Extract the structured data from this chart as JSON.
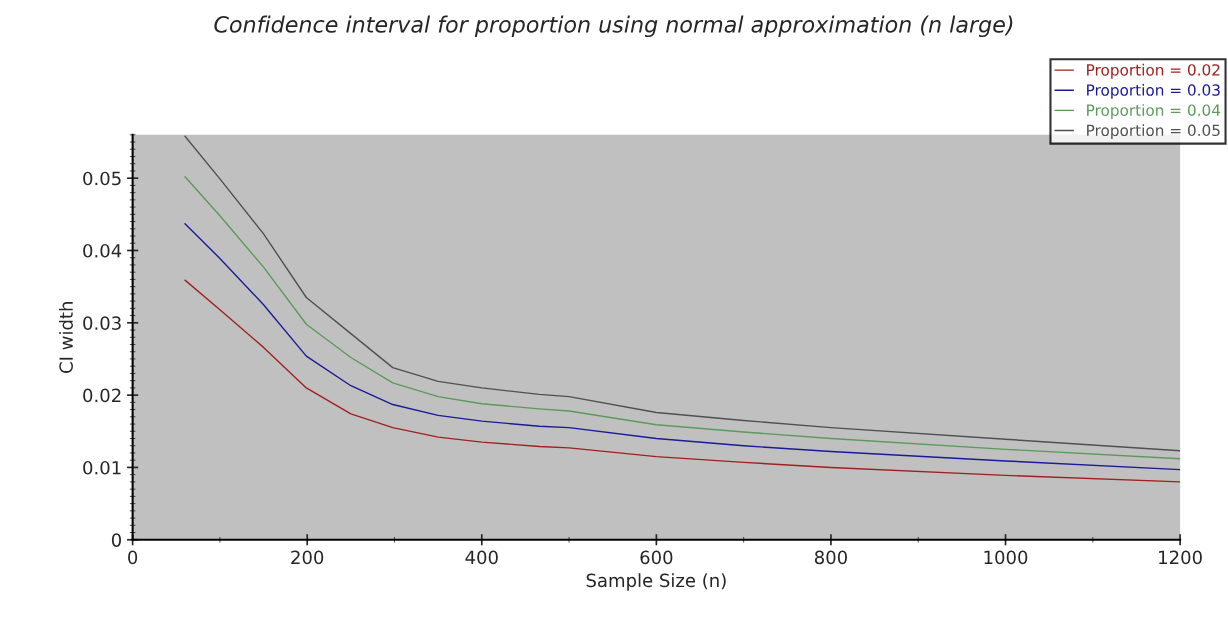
{
  "chart_data": {
    "type": "line",
    "title": "Confidence interval for proportion using normal approximation (n large)",
    "xlabel": "Sample Size (n)",
    "ylabel": "CI width",
    "x": [
      60,
      100,
      150,
      199,
      250,
      298,
      350,
      400,
      466,
      500,
      600,
      700,
      800,
      1000,
      1200
    ],
    "series": [
      {
        "name": "Proportion = 0.02",
        "color": "#a02020",
        "values": [
          0.0359,
          0.0318,
          0.0266,
          0.021,
          0.0174,
          0.0155,
          0.0142,
          0.0135,
          0.0129,
          0.0127,
          0.0115,
          0.0107,
          0.01,
          0.0089,
          0.008
        ]
      },
      {
        "name": "Proportion = 0.03",
        "color": "#1a1a9a",
        "values": [
          0.0437,
          0.0389,
          0.0325,
          0.0254,
          0.0213,
          0.0187,
          0.0172,
          0.0164,
          0.0157,
          0.0155,
          0.014,
          0.013,
          0.0122,
          0.0109,
          0.0097
        ]
      },
      {
        "name": "Proportion = 0.04",
        "color": "#5a9a5a",
        "values": [
          0.0502,
          0.0448,
          0.0377,
          0.0298,
          0.0252,
          0.0217,
          0.0198,
          0.0188,
          0.0181,
          0.0178,
          0.0159,
          0.0149,
          0.014,
          0.0125,
          0.0112
        ]
      },
      {
        "name": "Proportion = 0.05",
        "color": "#505050",
        "values": [
          0.0558,
          0.0499,
          0.0423,
          0.0335,
          0.0285,
          0.0238,
          0.0219,
          0.021,
          0.0201,
          0.0198,
          0.0176,
          0.0165,
          0.0155,
          0.0139,
          0.0123
        ]
      }
    ],
    "xlim": [
      0,
      1200
    ],
    "xticks": [
      0,
      200,
      400,
      600,
      800,
      1000,
      1200
    ],
    "ylim": [
      0,
      0.056
    ],
    "yticks": [
      0,
      0.01,
      0.02,
      0.03,
      0.04,
      0.05
    ],
    "grid": false,
    "legend": "top right",
    "marker": "none",
    "line_style": "solid"
  }
}
